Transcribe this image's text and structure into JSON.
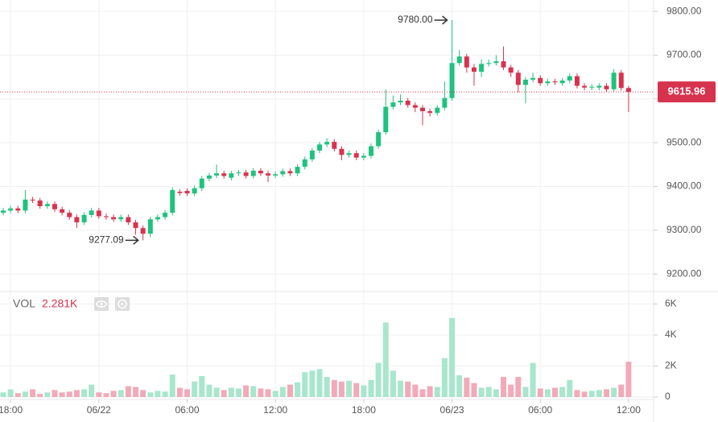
{
  "chart_data": {
    "type": "candlestick",
    "categories": [
      null,
      "18:00",
      null,
      null,
      null,
      null,
      null,
      null,
      null,
      null,
      null,
      null,
      null,
      "06/22",
      null,
      null,
      null,
      null,
      null,
      null,
      null,
      null,
      null,
      null,
      null,
      "06:00",
      null,
      null,
      null,
      null,
      null,
      null,
      null,
      null,
      null,
      null,
      null,
      "12:00",
      null,
      null,
      null,
      null,
      null,
      null,
      null,
      null,
      null,
      null,
      null,
      "18:00",
      null,
      null,
      null,
      null,
      null,
      null,
      null,
      null,
      null,
      null,
      null,
      "06/23",
      null,
      null,
      null,
      null,
      null,
      null,
      null,
      null,
      null,
      null,
      null,
      "06:00",
      null,
      null,
      null,
      null,
      null,
      null,
      null,
      null,
      null,
      null,
      null,
      "12:00"
    ],
    "open": [
      9340,
      9345,
      9350,
      9345,
      9370,
      9368,
      9355,
      9360,
      9348,
      9340,
      9330,
      9318,
      9335,
      9345,
      9332,
      9330,
      9325,
      9330,
      9318,
      9305,
      9292,
      9325,
      9330,
      9340,
      9388,
      9390,
      9384,
      9396,
      9418,
      9425,
      9430,
      9420,
      9430,
      9432,
      9424,
      9436,
      9430,
      9425,
      9428,
      9435,
      9430,
      9445,
      9462,
      9482,
      9496,
      9502,
      9486,
      9472,
      9476,
      9466,
      9470,
      9492,
      9524,
      9582,
      9592,
      9596,
      9586,
      9580,
      9572,
      9568,
      9580,
      9602,
      9682,
      9697,
      9672,
      9662,
      9680,
      9682,
      9686,
      9672,
      9660,
      9632,
      9644,
      9648,
      9636,
      9640,
      9636,
      9642,
      9652,
      9630,
      9626,
      9626,
      9630,
      9622,
      9660,
      9625
    ],
    "high": [
      9351,
      9356,
      9356,
      9392,
      9376,
      9374,
      9366,
      9366,
      9354,
      9346,
      9336,
      9341,
      9351,
      9351,
      9338,
      9336,
      9336,
      9336,
      9324,
      9311,
      9331,
      9336,
      9346,
      9398,
      9394,
      9396,
      9402,
      9424,
      9431,
      9450,
      9436,
      9436,
      9438,
      9438,
      9442,
      9442,
      9436,
      9434,
      9441,
      9441,
      9451,
      9468,
      9488,
      9502,
      9510,
      9508,
      9492,
      9482,
      9482,
      9476,
      9498,
      9530,
      9622,
      9608,
      9610,
      9602,
      9592,
      9586,
      9578,
      9586,
      9640,
      9780,
      9712,
      9703,
      9680,
      9690,
      9690,
      9700,
      9720,
      9678,
      9666,
      9650,
      9660,
      9654,
      9646,
      9646,
      9648,
      9658,
      9658,
      9636,
      9634,
      9636,
      9636,
      9668,
      9666,
      9630
    ],
    "low": [
      9334,
      9339,
      9339,
      9339,
      9362,
      9349,
      9349,
      9342,
      9334,
      9324,
      9305,
      9312,
      9329,
      9326,
      9324,
      9319,
      9319,
      9312,
      9290,
      9277.09,
      9284,
      9319,
      9324,
      9334,
      9379,
      9378,
      9378,
      9390,
      9412,
      9419,
      9418,
      9414,
      9424,
      9418,
      9418,
      9424,
      9410,
      9419,
      9422,
      9424,
      9424,
      9439,
      9456,
      9476,
      9490,
      9480,
      9460,
      9466,
      9460,
      9460,
      9464,
      9486,
      9518,
      9576,
      9586,
      9580,
      9570,
      9540,
      9560,
      9562,
      9574,
      9596,
      9676,
      9660,
      9630,
      9650,
      9674,
      9676,
      9666,
      9650,
      9615,
      9590,
      9638,
      9630,
      9630,
      9632,
      9630,
      9636,
      9624,
      9620,
      9620,
      9620,
      9616,
      9616,
      9619,
      9570
    ],
    "close": [
      9345,
      9350,
      9345,
      9370,
      9368,
      9355,
      9360,
      9348,
      9340,
      9330,
      9318,
      9335,
      9345,
      9332,
      9330,
      9325,
      9330,
      9318,
      9305,
      9292,
      9325,
      9330,
      9340,
      9392,
      9385,
      9384,
      9396,
      9418,
      9425,
      9430,
      9424,
      9430,
      9432,
      9424,
      9436,
      9430,
      9425,
      9428,
      9435,
      9430,
      9445,
      9462,
      9482,
      9496,
      9502,
      9486,
      9472,
      9476,
      9466,
      9470,
      9492,
      9524,
      9582,
      9592,
      9596,
      9586,
      9580,
      9572,
      9568,
      9580,
      9602,
      9682,
      9697,
      9672,
      9662,
      9680,
      9682,
      9686,
      9672,
      9660,
      9632,
      9644,
      9648,
      9636,
      9640,
      9638,
      9642,
      9652,
      9630,
      9626,
      9628,
      9630,
      9622,
      9660,
      9625,
      9615.96
    ],
    "ylim": [
      9160,
      9826
    ],
    "yticks": [
      {
        "value": 9200,
        "label": "9200.00"
      },
      {
        "value": 9300,
        "label": "9300.00"
      },
      {
        "value": 9400,
        "label": "9400.00"
      },
      {
        "value": 9500,
        "label": "9500.00"
      },
      {
        "value": 9600,
        "label": "9600.00"
      },
      {
        "value": 9700,
        "label": "9700.00"
      },
      {
        "value": 9800,
        "label": "9800.00"
      }
    ],
    "up_color": "#1fc27e",
    "down_color": "#d7334f",
    "grid": true,
    "last_price": {
      "value": 9615.96,
      "label": "9615.96"
    },
    "annotations": [
      {
        "value": 9780,
        "label": "9780.00"
      },
      {
        "value": 9277.09,
        "label": "9277.09"
      }
    ],
    "volume": {
      "title": "VOL",
      "current": {
        "value": 2281,
        "label": "2.281K"
      },
      "values": [
        300,
        500,
        250,
        350,
        500,
        200,
        300,
        450,
        300,
        350,
        450,
        500,
        800,
        300,
        250,
        400,
        450,
        700,
        650,
        450,
        300,
        400,
        350,
        1450,
        600,
        500,
        1000,
        1350,
        800,
        600,
        450,
        600,
        550,
        750,
        700,
        550,
        500,
        400,
        650,
        800,
        950,
        1600,
        1700,
        1800,
        1300,
        1100,
        1000,
        1050,
        900,
        750,
        1100,
        2200,
        4800,
        1700,
        1050,
        1000,
        800,
        500,
        700,
        650,
        2500,
        5100,
        1400,
        1250,
        900,
        600,
        650,
        500,
        1300,
        800,
        1300,
        650,
        2200,
        550,
        500,
        600,
        650,
        1100,
        450,
        350,
        400,
        450,
        500,
        600,
        800,
        2281
      ],
      "ylim": [
        0,
        6800
      ],
      "yticks": [
        0,
        {
          "value": 2000,
          "label": "2K"
        },
        {
          "value": 4000,
          "label": "4K"
        },
        {
          "value": 6000,
          "label": "6K"
        }
      ],
      "up_color": "#a8e6cd",
      "down_color": "#f2aab8"
    }
  }
}
